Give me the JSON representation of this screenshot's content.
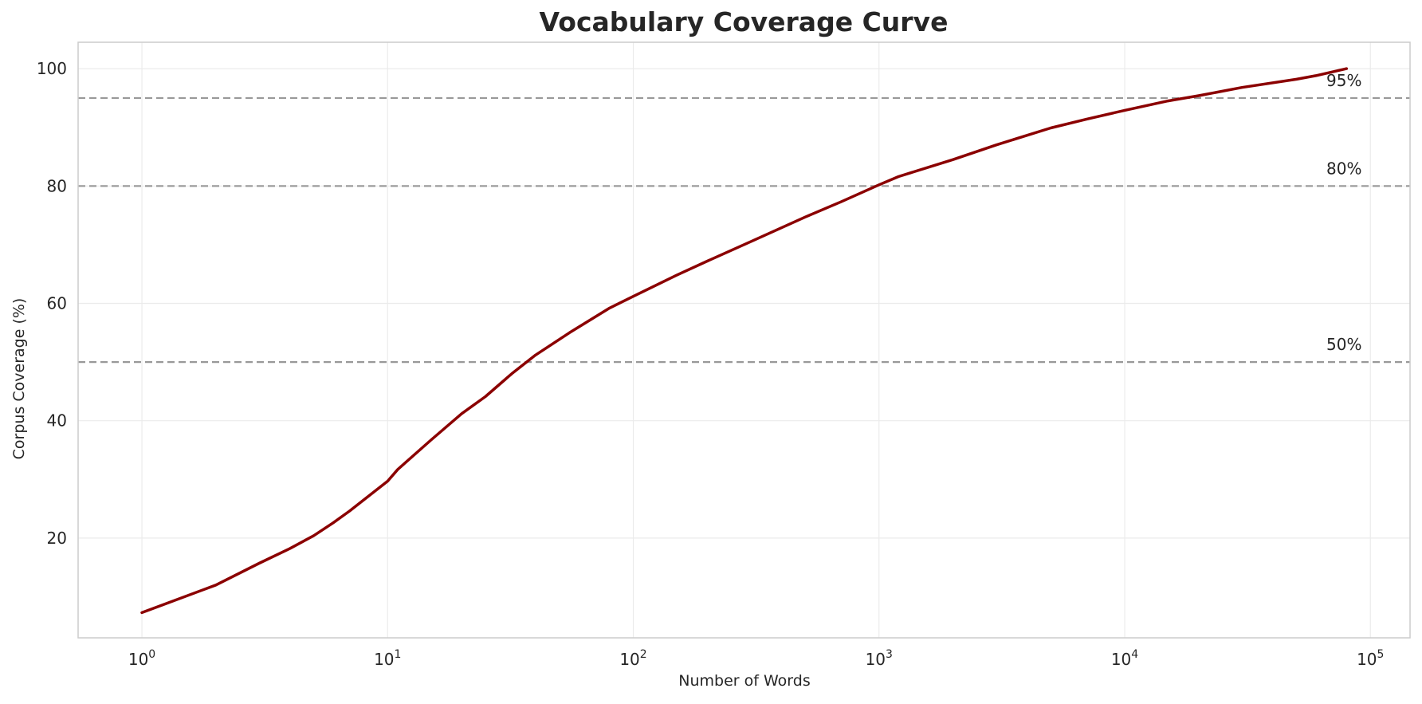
{
  "chart_data": {
    "type": "line",
    "title": "Vocabulary Coverage Curve",
    "xlabel": "Number of Words",
    "ylabel": "Corpus Coverage (%)",
    "x_scale": "log",
    "xlim": [
      0.55,
      145000
    ],
    "ylim": [
      3,
      104.5
    ],
    "grid": true,
    "x_ticks": [
      {
        "base": "10",
        "exp": "0",
        "value": 1
      },
      {
        "base": "10",
        "exp": "1",
        "value": 10
      },
      {
        "base": "10",
        "exp": "2",
        "value": 100
      },
      {
        "base": "10",
        "exp": "3",
        "value": 1000
      },
      {
        "base": "10",
        "exp": "4",
        "value": 10000
      },
      {
        "base": "10",
        "exp": "5",
        "value": 100000
      }
    ],
    "y_ticks": [
      20,
      40,
      60,
      80,
      100
    ],
    "series": [
      {
        "color": "#8b0000",
        "x": [
          1,
          2,
          3,
          4,
          5,
          6,
          7,
          10,
          11,
          15,
          20,
          25,
          32,
          40,
          55,
          80,
          100,
          150,
          200,
          300,
          500,
          700,
          1000,
          1200,
          2000,
          3000,
          5000,
          7000,
          10000,
          15000,
          20000,
          30000,
          50000,
          60000,
          80000
        ],
        "y": [
          7.3,
          12.0,
          15.7,
          18.2,
          20.4,
          22.6,
          24.6,
          29.7,
          31.7,
          36.7,
          41.2,
          44.1,
          48.0,
          51.2,
          55.0,
          59.2,
          61.2,
          64.8,
          67.2,
          70.5,
          74.7,
          77.3,
          80.2,
          81.6,
          84.5,
          87.0,
          89.9,
          91.4,
          92.9,
          94.5,
          95.4,
          96.8,
          98.2,
          98.8,
          100.0
        ]
      }
    ],
    "reference_lines": [
      {
        "y": 95,
        "label": "95%"
      },
      {
        "y": 80,
        "label": "80%"
      },
      {
        "y": 50,
        "label": "50%"
      }
    ],
    "reference_color": "#999999"
  }
}
